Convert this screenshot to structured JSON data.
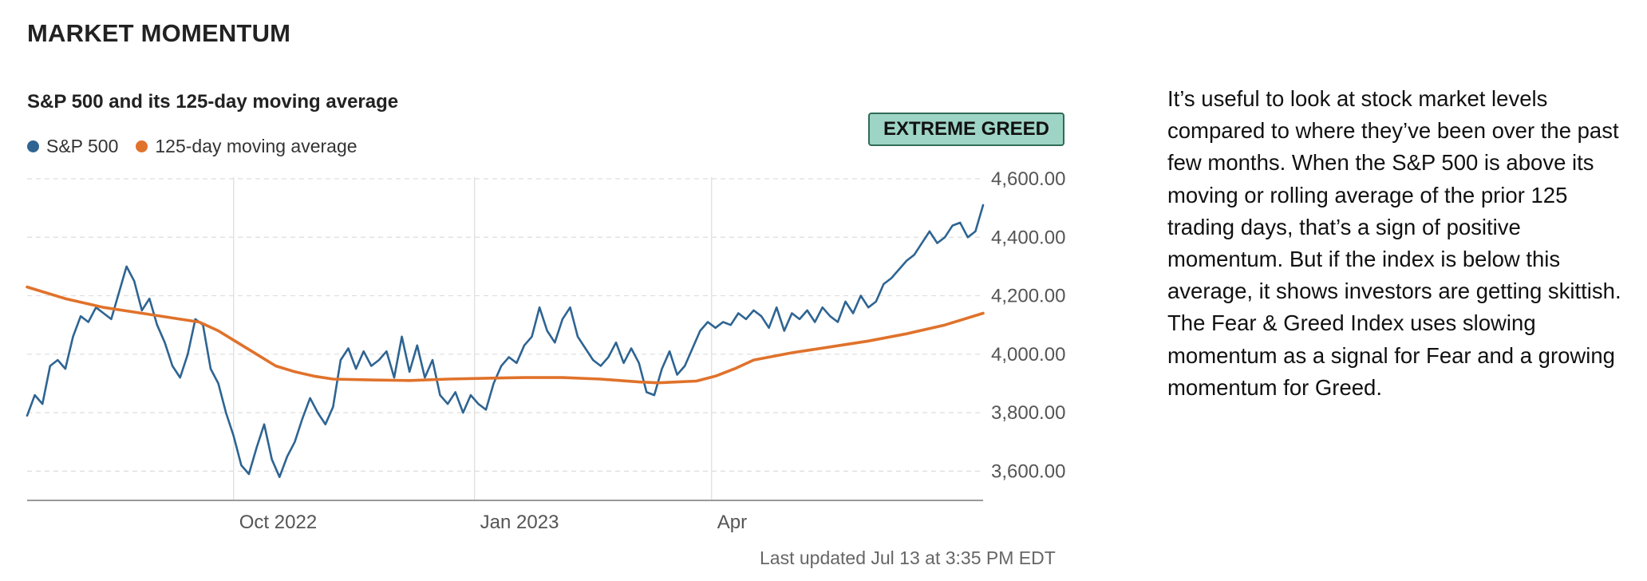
{
  "section_title": "MARKET MOMENTUM",
  "chart_title": "S&P 500 and its 125-day moving average",
  "rating_badge": "EXTREME GREED",
  "colors": {
    "sp500": "#2e6492",
    "moving_average": "#e0722b",
    "badge_bg": "#9ed4c5",
    "badge_border": "#2f6b57",
    "grid": "#dddddd",
    "axis": "#999999"
  },
  "last_updated": "Last updated Jul 13 at 3:35 PM EDT",
  "description": "It’s useful to look at stock market levels compared to where they’ve been over the past few months. When the S&P 500 is above its moving or rolling average of the prior 125 trading days, that’s a sign of positive momentum. But if the index is below this average, it shows investors are getting skittish. The Fear & Greed Index uses slowing momentum as a signal for Fear and a growing momentum for Greed.",
  "chart_data": {
    "type": "line",
    "title": "S&P 500 and its 125-day moving average",
    "xlabel": "",
    "ylabel": "",
    "ylim": [
      3500,
      4600
    ],
    "yticks": [
      3600,
      3800,
      4000,
      4200,
      4400,
      4600
    ],
    "ytick_labels": [
      "3,600.00",
      "3,800.00",
      "4,000.00",
      "4,200.00",
      "4,400.00",
      "4,600.00"
    ],
    "xlim": [
      0,
      250
    ],
    "xticks": [
      {
        "pos": 54,
        "label": "Oct 2022"
      },
      {
        "pos": 117,
        "label": "Jan 2023"
      },
      {
        "pos": 179,
        "label": "Apr"
      }
    ],
    "grid": true,
    "legend_position": "top-left",
    "series": [
      {
        "name": "S&P 500",
        "color": "#2e6492",
        "x": [
          0,
          2,
          4,
          6,
          8,
          10,
          12,
          14,
          16,
          18,
          20,
          22,
          24,
          26,
          28,
          30,
          32,
          34,
          36,
          38,
          40,
          42,
          44,
          46,
          48,
          50,
          52,
          54,
          56,
          58,
          60,
          62,
          64,
          66,
          68,
          70,
          72,
          74,
          76,
          78,
          80,
          82,
          84,
          86,
          88,
          90,
          92,
          94,
          96,
          98,
          100,
          102,
          104,
          106,
          108,
          110,
          112,
          114,
          116,
          118,
          120,
          122,
          124,
          126,
          128,
          130,
          132,
          134,
          136,
          138,
          140,
          142,
          144,
          146,
          148,
          150,
          152,
          154,
          156,
          158,
          160,
          162,
          164,
          166,
          168,
          170,
          172,
          174,
          176,
          178,
          180,
          182,
          184,
          186,
          188,
          190,
          192,
          194,
          196,
          198,
          200,
          202,
          204,
          206,
          208,
          210,
          212,
          214,
          216,
          218,
          220,
          222,
          224,
          226,
          228,
          230,
          232,
          234,
          236,
          238,
          240,
          242,
          244,
          246,
          248,
          250
        ],
        "values": [
          3790,
          3860,
          3830,
          3960,
          3980,
          3950,
          4060,
          4130,
          4110,
          4160,
          4140,
          4120,
          4210,
          4300,
          4250,
          4150,
          4190,
          4100,
          4040,
          3960,
          3920,
          4000,
          4120,
          4100,
          3950,
          3900,
          3800,
          3720,
          3620,
          3590,
          3680,
          3760,
          3640,
          3580,
          3650,
          3700,
          3780,
          3850,
          3800,
          3760,
          3820,
          3980,
          4020,
          3950,
          4010,
          3960,
          3980,
          4010,
          3920,
          4060,
          3940,
          4030,
          3920,
          3980,
          3860,
          3830,
          3870,
          3800,
          3860,
          3830,
          3810,
          3900,
          3960,
          3990,
          3970,
          4030,
          4060,
          4160,
          4080,
          4040,
          4120,
          4160,
          4060,
          4020,
          3980,
          3960,
          3990,
          4040,
          3970,
          4020,
          3970,
          3870,
          3860,
          3950,
          4010,
          3930,
          3960,
          4020,
          4080,
          4110,
          4090,
          4110,
          4100,
          4140,
          4120,
          4150,
          4130,
          4090,
          4160,
          4080,
          4140,
          4120,
          4150,
          4110,
          4160,
          4130,
          4110,
          4180,
          4140,
          4200,
          4160,
          4180,
          4240,
          4260,
          4290,
          4320,
          4340,
          4380,
          4420,
          4380,
          4400,
          4440,
          4450,
          4400,
          4420,
          4510
        ]
      },
      {
        "name": "125-day moving average",
        "color": "#e0722b",
        "x": [
          0,
          10,
          20,
          30,
          40,
          45,
          50,
          55,
          60,
          65,
          70,
          75,
          80,
          90,
          100,
          110,
          120,
          130,
          140,
          150,
          160,
          165,
          170,
          175,
          180,
          185,
          190,
          200,
          210,
          220,
          230,
          240,
          250
        ],
        "values": [
          4230,
          4190,
          4160,
          4140,
          4120,
          4110,
          4080,
          4040,
          4000,
          3960,
          3940,
          3925,
          3915,
          3912,
          3910,
          3915,
          3918,
          3920,
          3920,
          3915,
          3905,
          3902,
          3905,
          3908,
          3925,
          3950,
          3980,
          4005,
          4025,
          4045,
          4070,
          4100,
          4140
        ]
      }
    ]
  }
}
